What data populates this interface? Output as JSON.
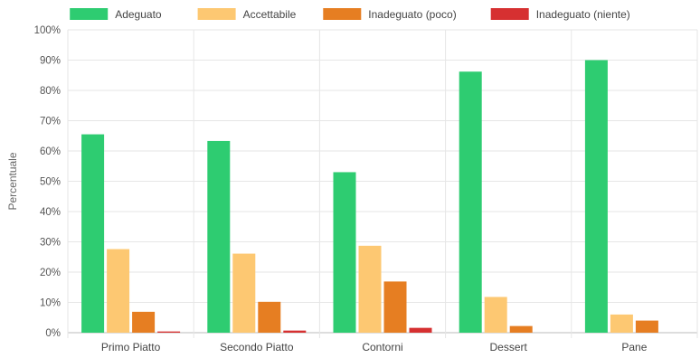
{
  "chart_data": {
    "type": "bar",
    "title": "",
    "xlabel": "",
    "ylabel": "Percentuale",
    "ylim": [
      0,
      100
    ],
    "y_ticks": [
      "0%",
      "10%",
      "20%",
      "30%",
      "40%",
      "50%",
      "60%",
      "70%",
      "80%",
      "90%",
      "100%"
    ],
    "grid": true,
    "legend_position": "top",
    "categories": [
      "Primo Piatto",
      "Secondo Piatto",
      "Contorni",
      "Dessert",
      "Pane"
    ],
    "series": [
      {
        "name": "Adeguato",
        "color": "#2ecc71",
        "values": [
          65.5,
          63.3,
          53.0,
          86.2,
          90.0
        ]
      },
      {
        "name": "Accettabile",
        "color": "#fdc872",
        "values": [
          27.6,
          26.1,
          28.7,
          11.8,
          6.0
        ]
      },
      {
        "name": "Inadeguato (poco)",
        "color": "#e67e22",
        "values": [
          6.9,
          10.2,
          16.9,
          2.2,
          4.0
        ]
      },
      {
        "name": "Inadeguato (niente)",
        "color": "#d63031",
        "values": [
          0.4,
          0.7,
          1.6,
          0.0,
          0.0
        ]
      }
    ]
  }
}
